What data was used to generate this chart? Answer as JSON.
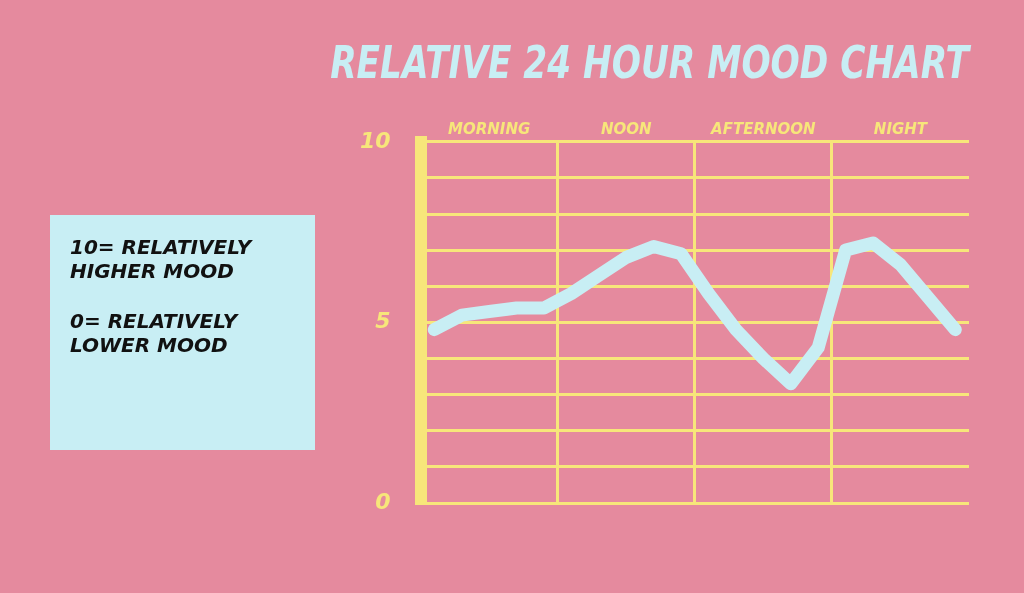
{
  "chart_data": {
    "type": "line",
    "title": "RELATIVE 24 HOUR MOOD CHART",
    "annotations": [
      "10= RELATIVELY HIGHER MOOD",
      "0= RELATIVELY LOWER MOOD"
    ],
    "categories": [
      null,
      null,
      "MORNING",
      null,
      null,
      null,
      null,
      "NOON",
      null,
      null,
      null,
      null,
      "AFTERNOON",
      null,
      null,
      null,
      null,
      "NIGHT",
      null,
      null
    ],
    "ylim": [
      0,
      10
    ],
    "yticks": [
      0,
      {
        "value": 1,
        "label": null
      },
      {
        "value": 2,
        "label": null
      },
      {
        "value": 3,
        "label": null
      },
      {
        "value": 4,
        "label": null
      },
      5,
      {
        "value": 6,
        "label": null
      },
      {
        "value": 7,
        "label": null
      },
      {
        "value": 8,
        "label": null
      },
      {
        "value": 9,
        "label": null
      },
      10
    ],
    "grid": true,
    "legend": false,
    "marker": "none",
    "line_style": "solid",
    "series": [
      {
        "color": "#c8eef4",
        "values": [
          4.8,
          5.2,
          5.3,
          5.4,
          5.4,
          5.8,
          6.3,
          6.8,
          7.1,
          6.9,
          5.8,
          4.8,
          4.0,
          3.3,
          4.3,
          7.0,
          7.2,
          6.6,
          5.7,
          4.8
        ]
      }
    ]
  }
}
